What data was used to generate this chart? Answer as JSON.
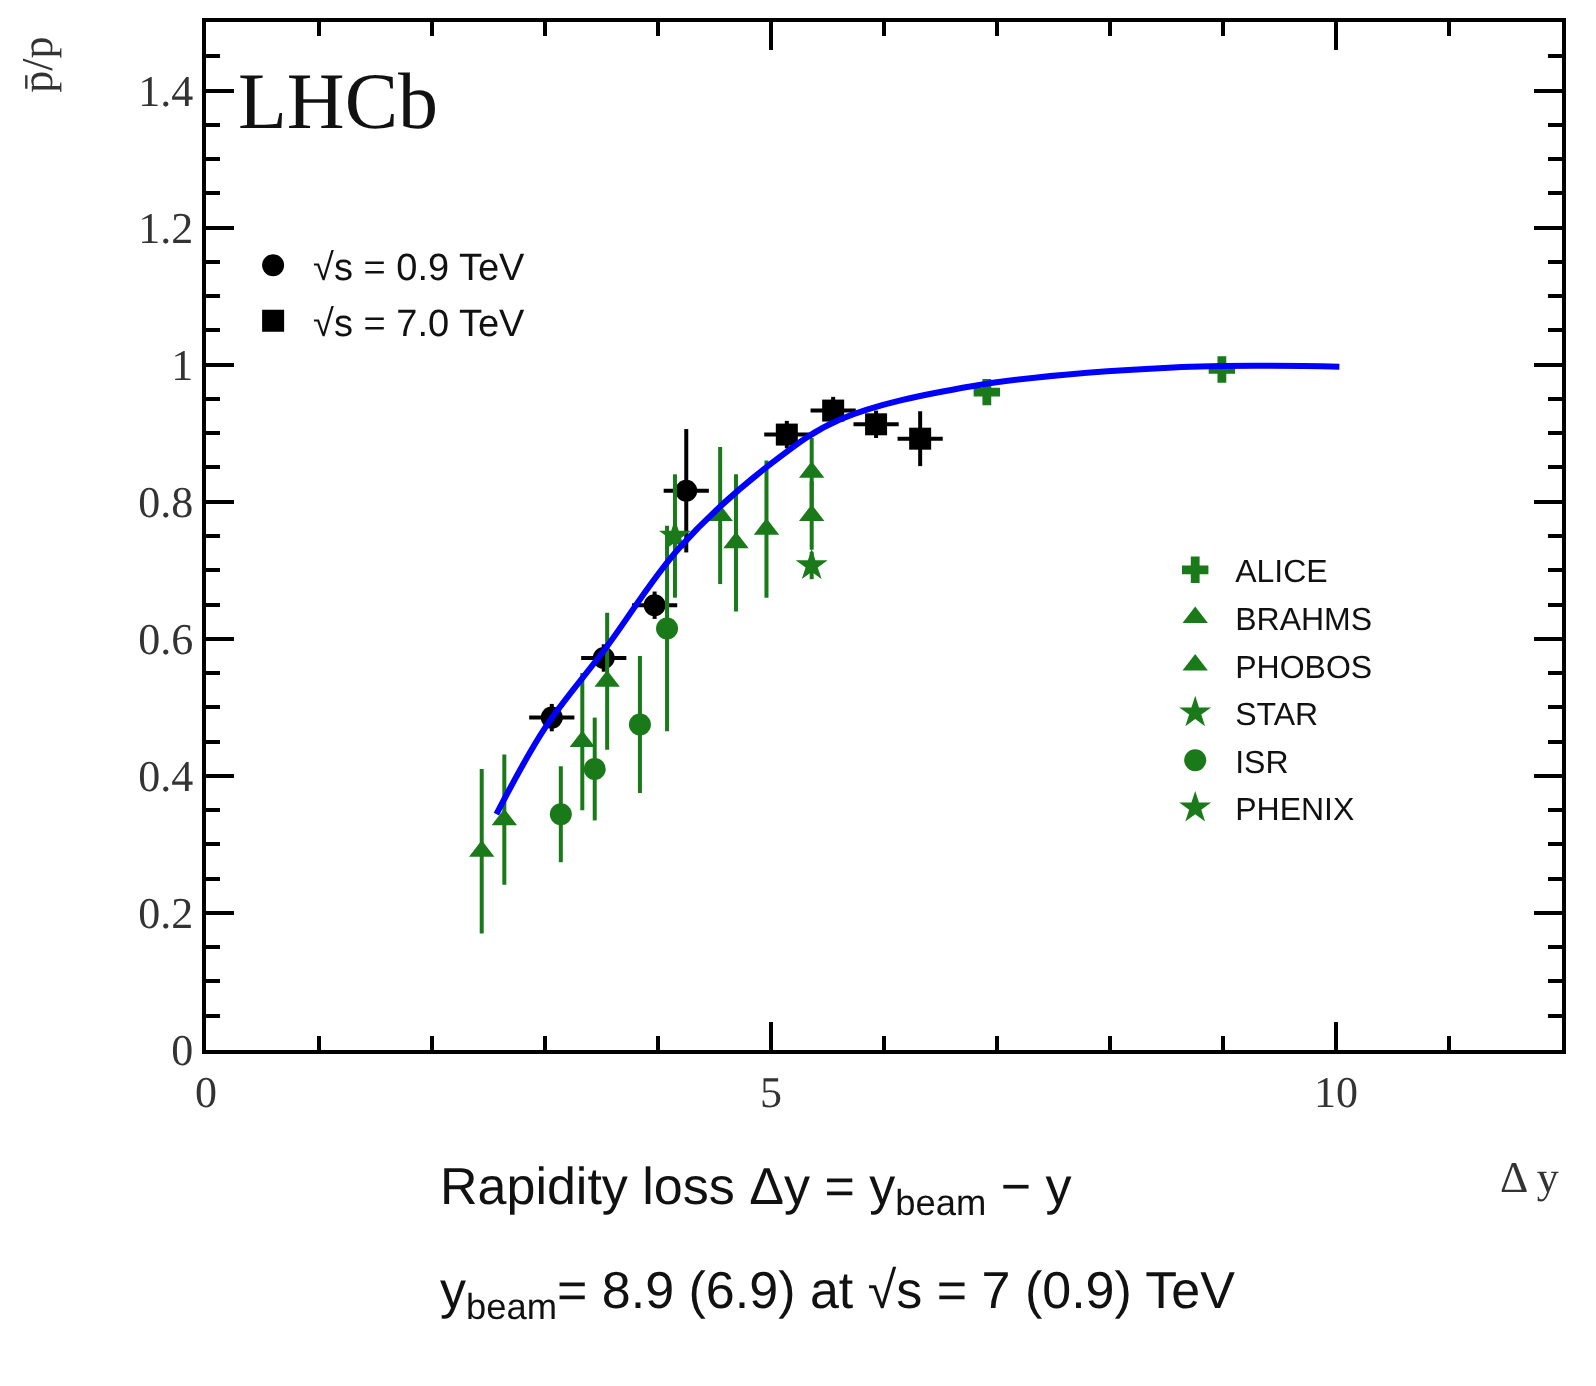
{
  "chart_data": {
    "type": "scatter",
    "xlabel": "Δ y",
    "ylabel": "p̄/p",
    "xlim": [
      0,
      12
    ],
    "ylim": [
      0,
      1.5
    ],
    "xticks": [
      0,
      5,
      10
    ],
    "yticks": [
      0,
      0.2,
      0.4,
      0.6,
      0.8,
      1,
      1.2,
      1.4
    ],
    "legend": "top left",
    "annotations": [
      "LHCb",
      "Rapidity loss Δy = y$_{beam}$ − y",
      "y$_{beam}$= 8.9 (6.9) at √s = 7 (0.9) TeV"
    ],
    "series": [
      {
        "name": "√s = 0.9 TeV",
        "color": "#000000",
        "marker": "circle",
        "x": [
          3.06,
          3.52,
          3.97,
          4.25
        ],
        "values": [
          0.485,
          0.572,
          0.649,
          0.816
        ],
        "errors": [
          0.02,
          0.02,
          0.02,
          0.09
        ],
        "xerrors": [
          0.2,
          0.2,
          0.2,
          0.2
        ]
      },
      {
        "name": "√s = 7.0 TeV",
        "color": "#000000",
        "marker": "square",
        "x": [
          5.14,
          5.55,
          5.93,
          6.32
        ],
        "values": [
          0.898,
          0.933,
          0.913,
          0.892
        ],
        "errors": [
          0.02,
          0.02,
          0.02,
          0.04
        ],
        "xerrors": [
          0.2,
          0.2,
          0.2,
          0.2
        ]
      },
      {
        "name": "ALICE",
        "color": "#1a7a1a",
        "marker": "cross",
        "x": [
          6.91,
          8.99
        ],
        "values": [
          0.96,
          0.993
        ]
      },
      {
        "name": "BRAHMS",
        "color": "#1a7a1a",
        "marker": "triangle",
        "x": [
          2.44,
          2.64,
          3.33,
          3.55,
          4.55,
          4.69,
          4.96,
          5.36
        ],
        "values": [
          0.29,
          0.336,
          0.45,
          0.538,
          0.78,
          0.74,
          0.76,
          0.78
        ],
        "errors": [
          0.12,
          0.095,
          0.1,
          0.1,
          0.1,
          0.1,
          0.1,
          0.05
        ]
      },
      {
        "name": "PHOBOS",
        "color": "#1a7a1a",
        "marker": "triangle",
        "x": [
          5.36
        ],
        "values": [
          0.843
        ],
        "errors": [
          0.05
        ]
      },
      {
        "name": "STAR",
        "color": "#1a7a1a",
        "marker": "star",
        "x": [
          4.15
        ],
        "values": [
          0.75
        ],
        "errors": [
          0.09
        ]
      },
      {
        "name": "ISR",
        "color": "#1a7a1a",
        "marker": "circle",
        "x": [
          3.14,
          3.44,
          3.84,
          4.08
        ],
        "values": [
          0.344,
          0.41,
          0.475,
          0.615
        ],
        "errors": [
          0.07,
          0.075,
          0.1,
          0.15
        ]
      },
      {
        "name": "PHENIX",
        "color": "#1a7a1a",
        "marker": "star",
        "x": [
          5.36
        ],
        "values": [
          0.707
        ],
        "errors": [
          0.02
        ]
      },
      {
        "type": "line",
        "color": "#0000ff",
        "marker": "none",
        "x": [
          2.57,
          3.0,
          3.54,
          4.19,
          5.02,
          5.61,
          6.79,
          8.56,
          10.03
        ],
        "values": [
          0.344,
          0.47,
          0.587,
          0.733,
          0.858,
          0.92,
          0.969,
          0.996,
          0.997
        ]
      }
    ]
  }
}
